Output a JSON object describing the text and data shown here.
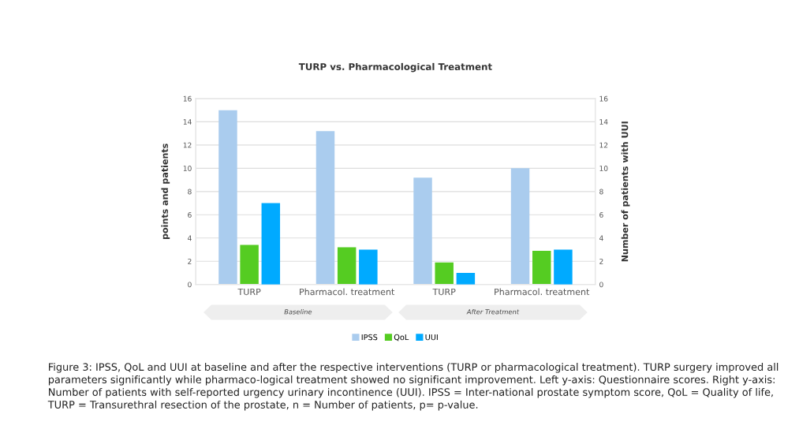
{
  "chart_data": {
    "type": "bar",
    "title": "TURP vs. Pharmacological Treatment",
    "categories": [
      "TURP",
      "Pharmacol. treatment",
      "TURP",
      "Pharmacol. treatment"
    ],
    "series": [
      {
        "name": "IPSS",
        "color": "#aaccee",
        "values": [
          15,
          13.2,
          9.2,
          10
        ]
      },
      {
        "name": "QoL",
        "color": "#55cc22",
        "values": [
          3.4,
          3.2,
          1.9,
          2.9
        ]
      },
      {
        "name": "UUI",
        "color": "#00aaff",
        "values": [
          7,
          3,
          1,
          3
        ],
        "axis": "y2"
      }
    ],
    "ylabel": "points and patients",
    "y2label": "Number of patients with UUI",
    "ylim": [
      0,
      16
    ],
    "yticks": [
      0,
      2,
      4,
      6,
      8,
      10,
      12,
      14,
      16
    ],
    "y2lim": [
      0,
      16
    ],
    "y2ticks": [
      0,
      2,
      4,
      6,
      8,
      10,
      12,
      14,
      16
    ],
    "grid": "y",
    "legend": "bottom",
    "annotations": [
      "Baseline",
      "After Treatment",
      "Figure 3: IPSS, QoL and UUI at baseline and after the respective interventions (TURP or pharmacological treatment). TURP surgery improved all parameters significantly while pharmaco-logical treatment showed no significant improvement. Left y-axis: Questionnaire scores. Right y-axis: Number of patients with self-reported urgency urinary incontinence (UUI). IPSS = Inter-national prostate symptom score, QoL = Quality of life, TURP = Transurethral resection of the prostate, n = Number of patients, p= p-value."
    ]
  }
}
